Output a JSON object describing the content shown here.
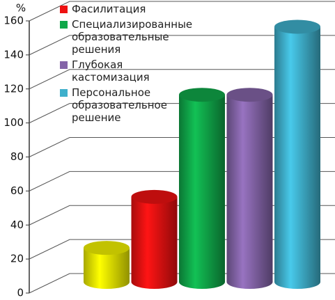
{
  "chart_data": {
    "type": "cylinder-bar",
    "y_label": "%",
    "ylim": [
      0,
      160
    ],
    "yticks": [
      0,
      20,
      40,
      60,
      80,
      100,
      120,
      140,
      160
    ],
    "grid": true,
    "series": [
      {
        "name": null,
        "color": "#f2f200",
        "values": [
          20
        ]
      },
      {
        "name": "Фасилитация",
        "color": "#ee1111",
        "values": [
          50
        ]
      },
      {
        "name": "Специализированные образовательные решения",
        "color": "#10a84a",
        "values": [
          110
        ]
      },
      {
        "name": "Глубокая кастомизация",
        "color": "#8464a8",
        "values": [
          110
        ]
      },
      {
        "name": "Персональное образовательное решение",
        "color": "#3fb0cc",
        "values": [
          150
        ]
      }
    ]
  }
}
